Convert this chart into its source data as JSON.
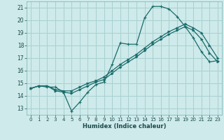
{
  "xlabel": "Humidex (Indice chaleur)",
  "ylabel": "",
  "xlim": [
    -0.5,
    23.5
  ],
  "ylim": [
    12.5,
    21.5
  ],
  "xticks": [
    0,
    1,
    2,
    3,
    4,
    5,
    6,
    7,
    8,
    9,
    10,
    11,
    12,
    13,
    14,
    15,
    16,
    17,
    18,
    19,
    20,
    21,
    22,
    23
  ],
  "yticks": [
    13,
    14,
    15,
    16,
    17,
    18,
    19,
    20,
    21
  ],
  "bg_color": "#ceeaea",
  "grid_color": "#a8d0d0",
  "line_color": "#1a6b6b",
  "series1_x": [
    0,
    1,
    2,
    3,
    4,
    5,
    6,
    7,
    8,
    9,
    10,
    11,
    12,
    13,
    14,
    15,
    16,
    17,
    18,
    19,
    20,
    21,
    22,
    23
  ],
  "series1_y": [
    14.6,
    14.8,
    14.7,
    14.7,
    14.3,
    12.8,
    13.5,
    14.3,
    14.9,
    15.1,
    16.5,
    18.2,
    18.1,
    18.1,
    20.2,
    21.1,
    21.1,
    20.9,
    20.3,
    19.5,
    18.6,
    17.5,
    16.7,
    16.8
  ],
  "series2_x": [
    0,
    1,
    2,
    3,
    4,
    5,
    6,
    7,
    8,
    9,
    10,
    11,
    12,
    13,
    14,
    15,
    16,
    17,
    18,
    19,
    20,
    21,
    22,
    23
  ],
  "series2_y": [
    14.6,
    14.8,
    14.8,
    14.4,
    14.3,
    14.2,
    14.5,
    14.8,
    15.1,
    15.3,
    15.8,
    16.3,
    16.7,
    17.1,
    17.6,
    18.1,
    18.5,
    18.9,
    19.2,
    19.5,
    19.2,
    18.5,
    17.4,
    16.7
  ],
  "series3_x": [
    0,
    1,
    2,
    3,
    4,
    5,
    6,
    7,
    8,
    9,
    10,
    11,
    12,
    13,
    14,
    15,
    16,
    17,
    18,
    19,
    20,
    21,
    22,
    23
  ],
  "series3_y": [
    14.6,
    14.8,
    14.8,
    14.5,
    14.4,
    14.4,
    14.7,
    15.0,
    15.2,
    15.5,
    16.0,
    16.5,
    16.9,
    17.3,
    17.8,
    18.3,
    18.7,
    19.1,
    19.4,
    19.7,
    19.4,
    19.0,
    18.0,
    17.0
  ]
}
